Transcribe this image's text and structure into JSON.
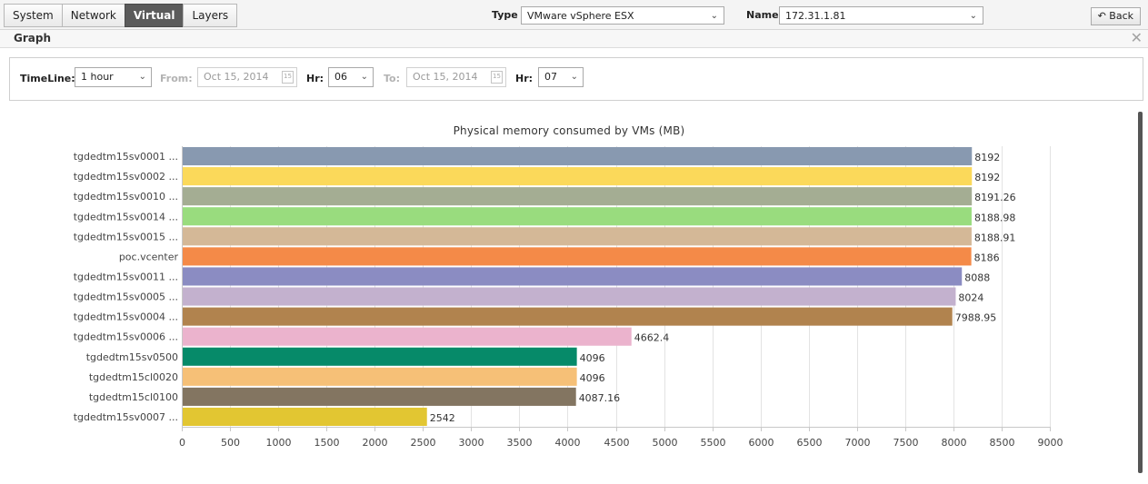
{
  "tabs": [
    {
      "label": "System",
      "active": false
    },
    {
      "label": "Network",
      "active": false
    },
    {
      "label": "Virtual",
      "active": true
    },
    {
      "label": "Layers",
      "active": false
    }
  ],
  "header": {
    "type_label": "Type",
    "type_value": "VMware vSphere ESX",
    "name_label": "Name",
    "name_value": "172.31.1.81",
    "back_label": "Back"
  },
  "panel": {
    "title": "Graph"
  },
  "filter": {
    "timeline_label": "TimeLine:",
    "timeline_value": "1 hour",
    "from_label": "From:",
    "from_value": "Oct 15, 2014",
    "hr1_label": "Hr:",
    "hr1_value": "06",
    "to_label": "To:",
    "to_value": "Oct 15, 2014",
    "hr2_label": "Hr:",
    "hr2_value": "07"
  },
  "chart_data": {
    "type": "bar",
    "orientation": "horizontal",
    "title": "Physical memory consumed by VMs (MB)",
    "xlabel": "",
    "ylabel": "",
    "xlim": [
      0,
      9000
    ],
    "xticks": [
      0,
      500,
      1000,
      1500,
      2000,
      2500,
      3000,
      3500,
      4000,
      4500,
      5000,
      5500,
      6000,
      6500,
      7000,
      7500,
      8000,
      8500,
      9000
    ],
    "grid": "vertical",
    "categories": [
      "tgdedtm15sv0001 ...",
      "tgdedtm15sv0002 ...",
      "tgdedtm15sv0010 ...",
      "tgdedtm15sv0014 ...",
      "tgdedtm15sv0015 ...",
      "poc.vcenter",
      "tgdedtm15sv0011 ...",
      "tgdedtm15sv0005 ...",
      "tgdedtm15sv0004 ...",
      "tgdedtm15sv0006 ...",
      "tgdedtm15sv0500",
      "tgdedtm15cl0020",
      "tgdedtm15cl0100",
      "tgdedtm15sv0007 ..."
    ],
    "values": [
      8192,
      8192,
      8191.26,
      8188.98,
      8188.91,
      8186,
      8088,
      8024,
      7988.95,
      4662.4,
      4096,
      4096,
      4087.16,
      2542
    ],
    "value_labels": [
      "8192",
      "8192",
      "8191.26",
      "8188.98",
      "8188.91",
      "8186",
      "8088",
      "8024",
      "7988.95",
      "4662.4",
      "4096",
      "4096",
      "4087.16",
      "2542"
    ],
    "colors": [
      "#8899b0",
      "#fbd95a",
      "#a4ad93",
      "#99dc7e",
      "#d4b897",
      "#f48a48",
      "#8b8cc2",
      "#c3b1ce",
      "#b1834e",
      "#ebb3cd",
      "#068a69",
      "#f6c077",
      "#837561",
      "#e2c632"
    ]
  }
}
